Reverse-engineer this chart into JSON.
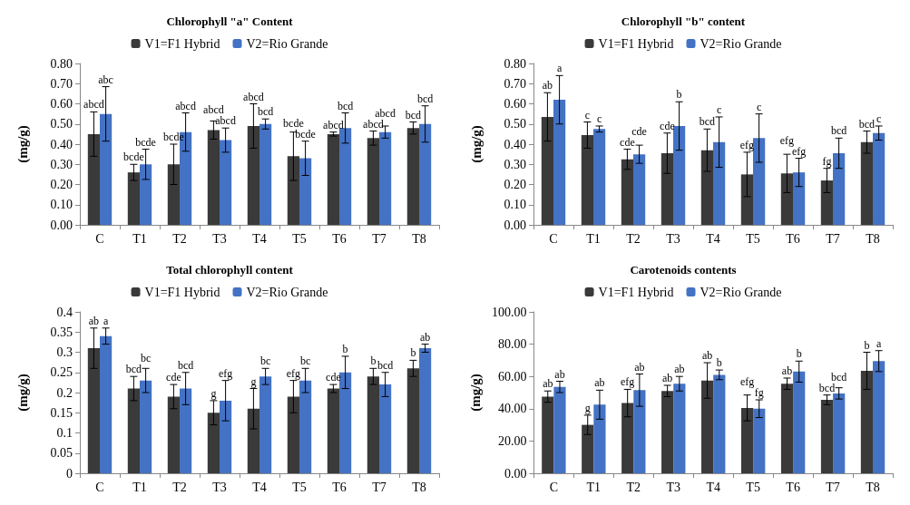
{
  "chart_data": [
    {
      "type": "bar",
      "title": "Chlorophyll \"a\" Content",
      "ylabel": "(mg/g)",
      "categories": [
        "C",
        "T1",
        "T2",
        "T3",
        "T4",
        "T5",
        "T6",
        "T7",
        "T8"
      ],
      "ylim": [
        0,
        0.8
      ],
      "yticks": [
        {
          "value": 0,
          "label": "0.00"
        },
        {
          "value": 0.1,
          "label": "0.10"
        },
        {
          "value": 0.2,
          "label": "0.20"
        },
        {
          "value": 0.3,
          "label": "0.30"
        },
        {
          "value": 0.4,
          "label": "0.40"
        },
        {
          "value": 0.5,
          "label": "0.50"
        },
        {
          "value": 0.6,
          "label": "0.60"
        },
        {
          "value": 0.7,
          "label": "0.70"
        },
        {
          "value": 0.8,
          "label": "0.80"
        }
      ],
      "legend": "top",
      "series": [
        {
          "name": "V1=F1 Hybrid",
          "color": "#3a3a3a",
          "values": [
            0.45,
            0.26,
            0.3,
            0.47,
            0.49,
            0.34,
            0.45,
            0.43,
            0.48
          ],
          "errors": [
            0.11,
            0.04,
            0.1,
            0.045,
            0.11,
            0.12,
            0.01,
            0.035,
            0.03
          ],
          "value_labels": [
            "abcd",
            "bcde",
            "bcde",
            "abcd",
            "abcd",
            "bcde",
            "abcd",
            "abcd",
            "bcd"
          ]
        },
        {
          "name": "V2=Rio Grande",
          "color": "#4472c4",
          "values": [
            0.55,
            0.3,
            0.46,
            0.42,
            0.5,
            0.33,
            0.48,
            0.46,
            0.5
          ],
          "errors": [
            0.135,
            0.075,
            0.095,
            0.06,
            0.025,
            0.085,
            0.075,
            0.03,
            0.09
          ],
          "value_labels": [
            "abc",
            "bcde",
            "abcd",
            "abcd",
            "bcd",
            "bcde",
            "bcd",
            "abcd",
            "bcd"
          ]
        }
      ]
    },
    {
      "type": "bar",
      "title": "Chlorophyll \"b\" content",
      "ylabel": "(mg/g)",
      "categories": [
        "C",
        "T1",
        "T2",
        "T3",
        "T4",
        "T5",
        "T6",
        "T7",
        "T8"
      ],
      "ylim": [
        0,
        0.8
      ],
      "yticks": [
        {
          "value": 0,
          "label": "0.00"
        },
        {
          "value": 0.1,
          "label": "0.10"
        },
        {
          "value": 0.2,
          "label": "0.20"
        },
        {
          "value": 0.3,
          "label": "0.30"
        },
        {
          "value": 0.4,
          "label": "0.40"
        },
        {
          "value": 0.5,
          "label": "0.50"
        },
        {
          "value": 0.6,
          "label": "0.60"
        },
        {
          "value": 0.7,
          "label": "0.70"
        },
        {
          "value": 0.8,
          "label": "0.80"
        }
      ],
      "legend": "top",
      "series": [
        {
          "name": "V1=F1 Hybrid",
          "color": "#3a3a3a",
          "values": [
            0.535,
            0.445,
            0.325,
            0.355,
            0.37,
            0.25,
            0.255,
            0.22,
            0.41
          ],
          "errors": [
            0.12,
            0.065,
            0.05,
            0.1,
            0.105,
            0.11,
            0.095,
            0.06,
            0.055
          ],
          "value_labels": [
            "ab",
            "c",
            "cde",
            "cde",
            "bcd",
            "efg",
            "efg",
            "fg",
            "bcd"
          ]
        },
        {
          "name": "V2=Rio Grande",
          "color": "#4472c4",
          "values": [
            0.62,
            0.475,
            0.35,
            0.49,
            0.41,
            0.43,
            0.26,
            0.355,
            0.455
          ],
          "errors": [
            0.12,
            0.015,
            0.045,
            0.12,
            0.125,
            0.12,
            0.07,
            0.075,
            0.035
          ],
          "value_labels": [
            "a",
            "c",
            "cde",
            "b",
            "c",
            "c",
            "efg",
            "bcd",
            "c"
          ]
        }
      ]
    },
    {
      "type": "bar",
      "title": "Total chlorophyll content",
      "ylabel": "(mg/g)",
      "categories": [
        "C",
        "T1",
        "T2",
        "T3",
        "T4",
        "T5",
        "T6",
        "T7",
        "T8"
      ],
      "ylim": [
        0,
        0.4
      ],
      "yticks": [
        0,
        0.05,
        0.1,
        0.15,
        0.2,
        0.25,
        0.3,
        0.35,
        0.4
      ],
      "legend": "top",
      "series": [
        {
          "name": "V1=F1 Hybrid",
          "color": "#3a3a3a",
          "values": [
            0.31,
            0.21,
            0.19,
            0.15,
            0.16,
            0.19,
            0.21,
            0.24,
            0.26
          ],
          "errors": [
            0.05,
            0.03,
            0.03,
            0.03,
            0.05,
            0.04,
            0.01,
            0.02,
            0.02
          ],
          "value_labels": [
            "ab",
            "bcd",
            "cde",
            "g",
            "g",
            "efg",
            "cde",
            "b",
            "b"
          ]
        },
        {
          "name": "V2=Rio Grande",
          "color": "#4472c4",
          "values": [
            0.34,
            0.23,
            0.21,
            0.18,
            0.24,
            0.23,
            0.25,
            0.22,
            0.31
          ],
          "errors": [
            0.02,
            0.03,
            0.04,
            0.05,
            0.02,
            0.03,
            0.04,
            0.03,
            0.01
          ],
          "value_labels": [
            "a",
            "bc",
            "bcd",
            "efg",
            "bc",
            "bc",
            "b",
            "bcd",
            "ab"
          ]
        }
      ]
    },
    {
      "type": "bar",
      "title": "Carotenoids contents",
      "ylabel": "(mg/g)",
      "categories": [
        "C",
        "T1",
        "T2",
        "T3",
        "T4",
        "T5",
        "T6",
        "T7",
        "T8"
      ],
      "ylim": [
        0,
        100
      ],
      "yticks": [
        {
          "value": 0,
          "label": "0.00"
        },
        {
          "value": 20,
          "label": "20.00"
        },
        {
          "value": 40,
          "label": "40.00"
        },
        {
          "value": 60,
          "label": "60.00"
        },
        {
          "value": 80,
          "label": "80.00"
        },
        {
          "value": 100,
          "label": "100.00"
        }
      ],
      "legend": "top",
      "series": [
        {
          "name": "V1=F1 Hybrid",
          "color": "#3a3a3a",
          "values": [
            47.5,
            30,
            43.5,
            51,
            57.5,
            40.5,
            55.5,
            45.5,
            63.5
          ],
          "errors": [
            3.5,
            6,
            8.5,
            3.5,
            11,
            8,
            3.5,
            3,
            11.5
          ],
          "value_labels": [
            "ab",
            "g",
            "efg",
            "ab",
            "ab",
            "efg",
            "ab",
            "bcd",
            "b"
          ]
        },
        {
          "name": "V2=Rio Grande",
          "color": "#4472c4",
          "values": [
            53.5,
            42.5,
            51.5,
            55.5,
            61,
            40,
            63,
            49.5,
            69.5
          ],
          "errors": [
            3.5,
            9,
            10,
            4.5,
            3,
            5.5,
            6.5,
            3.5,
            6.5
          ],
          "value_labels": [
            "ab",
            "ab",
            "ab",
            "ab",
            "b",
            "fg",
            "b",
            "bcd",
            "a"
          ]
        }
      ]
    }
  ]
}
